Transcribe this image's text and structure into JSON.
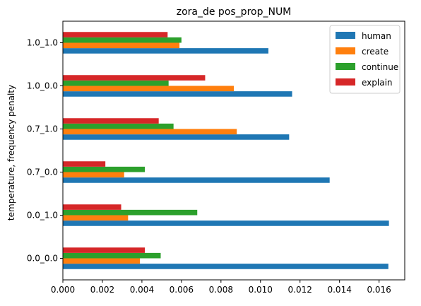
{
  "chart_data": {
    "type": "bar",
    "orientation": "horizontal",
    "title": "zora_de pos_prop_NUM",
    "ylabel": "temperature, frequency penalty",
    "xlabel": "",
    "categories": [
      "0.0_0.0",
      "0.0_1.0",
      "0.7_0.0",
      "0.7_1.0",
      "1.0_0.0",
      "1.0_1.0"
    ],
    "xlim": [
      0,
      0.0173
    ],
    "xticks": [
      0,
      0.002,
      0.004,
      0.006,
      0.008,
      0.01,
      0.012,
      0.014,
      0.016
    ],
    "xtick_labels": [
      "0.000",
      "0.002",
      "0.004",
      "0.006",
      "0.008",
      "0.010",
      "0.012",
      "0.014",
      "0.016"
    ],
    "grid": false,
    "legend_position": "top-right",
    "series": [
      {
        "name": "human",
        "color": "#1f77b4",
        "values": [
          0.01647,
          0.0165,
          0.0135,
          0.01145,
          0.0116,
          0.0104
        ]
      },
      {
        "name": "create",
        "color": "#ff7f0e",
        "values": [
          0.0039,
          0.0033,
          0.0031,
          0.0088,
          0.00865,
          0.0059
        ]
      },
      {
        "name": "continue",
        "color": "#2ca02c",
        "values": [
          0.00495,
          0.0068,
          0.00415,
          0.0056,
          0.00535,
          0.006
        ]
      },
      {
        "name": "explain",
        "color": "#d62728",
        "values": [
          0.00415,
          0.00295,
          0.00215,
          0.00485,
          0.0072,
          0.0053
        ]
      }
    ]
  }
}
